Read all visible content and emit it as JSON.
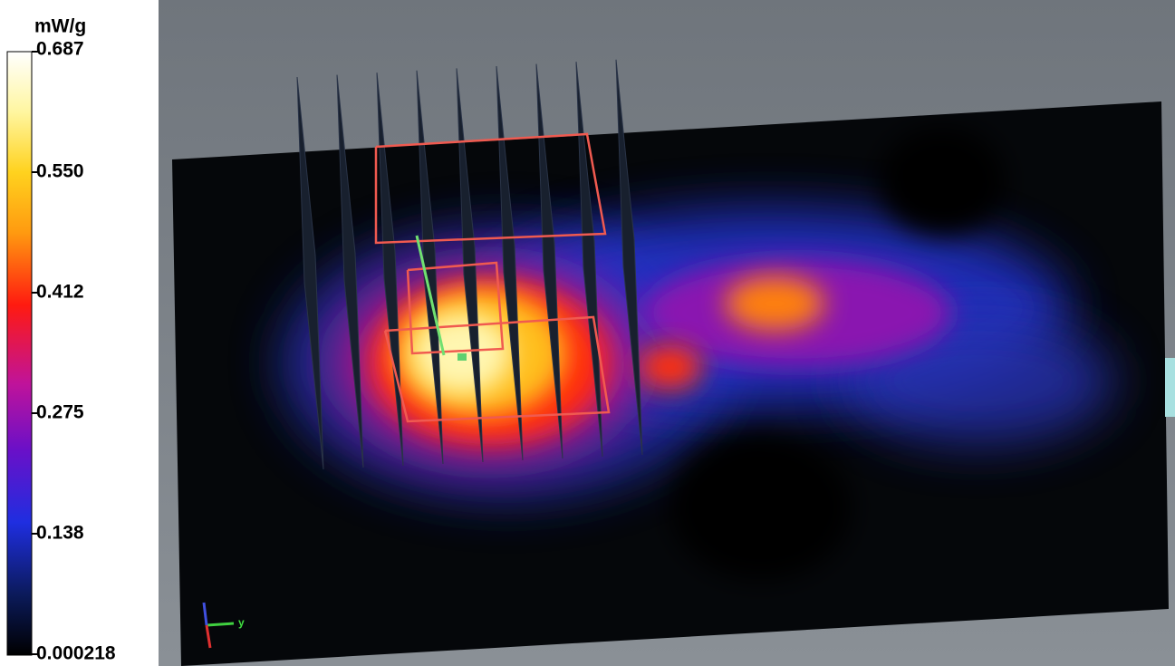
{
  "colorbar": {
    "unit": "mW/g",
    "labels": [
      "0.687",
      "0.550",
      "0.412",
      "0.275",
      "0.138",
      "0.000218"
    ]
  },
  "view": {
    "axis_label": "y"
  }
}
